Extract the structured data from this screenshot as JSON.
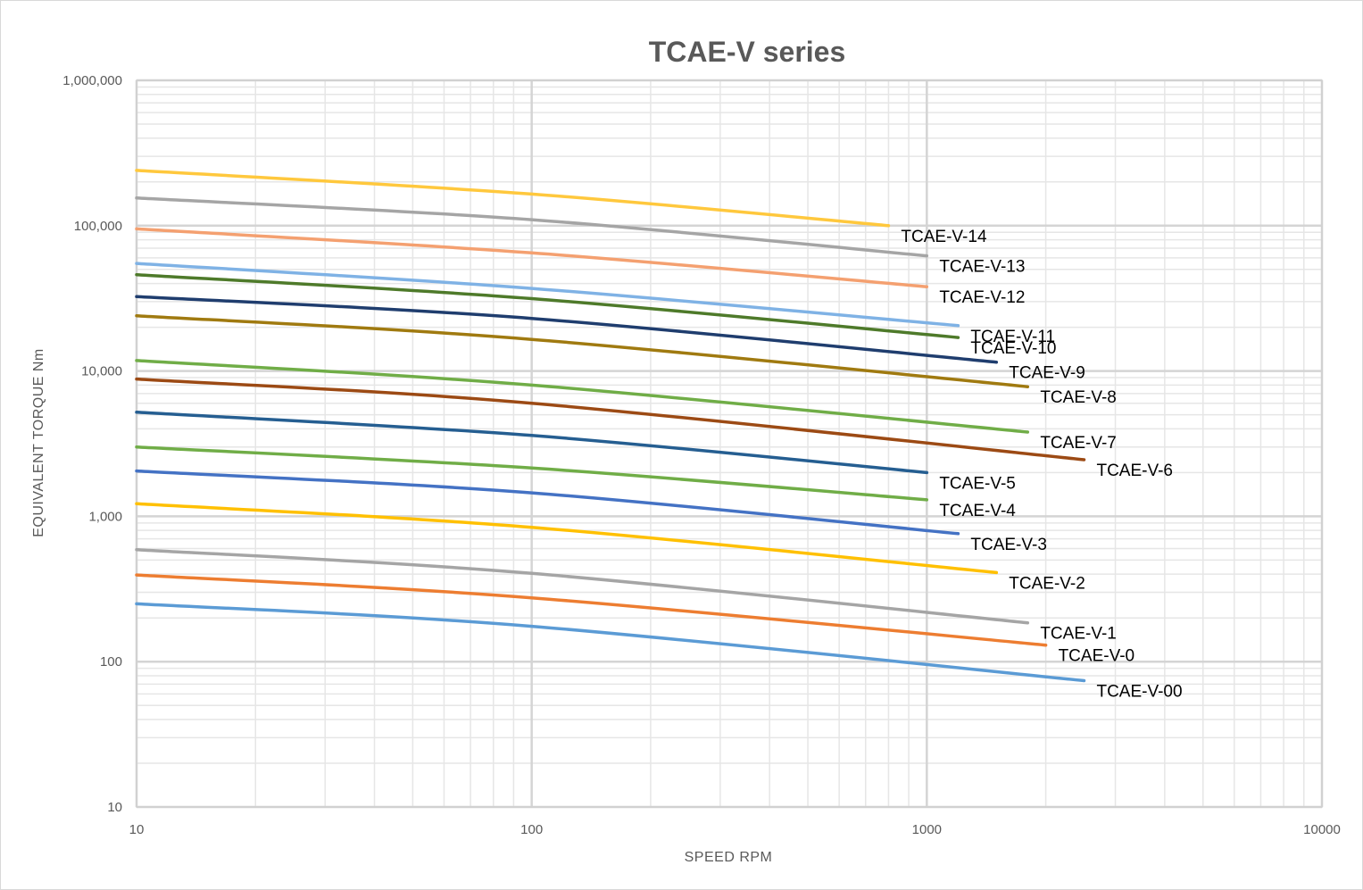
{
  "chart_data": {
    "type": "line",
    "title": "TCAE-V series",
    "xlabel": "SPEED  RPM",
    "ylabel": "EQUIVALENT TORQUE Nm",
    "x_scale": "log",
    "y_scale": "log",
    "xlim": [
      10,
      10000
    ],
    "ylim": [
      10,
      1000000
    ],
    "x_ticks": [
      "10",
      "100",
      "1000",
      "10000"
    ],
    "y_ticks": [
      "10",
      "100",
      "1,000",
      "10,000",
      "100,000",
      "1,000,000"
    ],
    "grid": true,
    "legend": "inline labels at line ends",
    "series": [
      {
        "name": "TCAE-V-14",
        "color": "#FFC83D",
        "x": [
          10,
          100,
          800
        ],
        "y": [
          240000,
          165000,
          100000
        ]
      },
      {
        "name": "TCAE-V-13",
        "color": "#A5A5A5",
        "x": [
          10,
          100,
          1000
        ],
        "y": [
          155000,
          110000,
          62000
        ]
      },
      {
        "name": "TCAE-V-12",
        "color": "#F4A070",
        "x": [
          10,
          100,
          1000
        ],
        "y": [
          95000,
          65000,
          38000
        ]
      },
      {
        "name": "TCAE-V-11",
        "color": "#7FB2E5",
        "x": [
          10,
          100,
          1200
        ],
        "y": [
          55000,
          37000,
          20500
        ]
      },
      {
        "name": "TCAE-V-10",
        "color": "#4E7A2A",
        "x": [
          10,
          100,
          1200
        ],
        "y": [
          46000,
          31500,
          17000
        ]
      },
      {
        "name": "TCAE-V-9",
        "color": "#1F3D6E",
        "x": [
          10,
          100,
          1500
        ],
        "y": [
          32500,
          23000,
          11500
        ]
      },
      {
        "name": "TCAE-V-8",
        "color": "#A07A10",
        "x": [
          10,
          100,
          1800
        ],
        "y": [
          24000,
          16500,
          7800
        ]
      },
      {
        "name": "TCAE-V-7",
        "color": "#70AD47",
        "x": [
          10,
          100,
          1800
        ],
        "y": [
          11800,
          8000,
          3800
        ]
      },
      {
        "name": "TCAE-V-6",
        "color": "#9C4A14",
        "x": [
          10,
          100,
          2500
        ],
        "y": [
          8800,
          6000,
          2450
        ]
      },
      {
        "name": "TCAE-V-5",
        "color": "#255E91",
        "x": [
          10,
          100,
          1000
        ],
        "y": [
          5200,
          3600,
          2000
        ]
      },
      {
        "name": "TCAE-V-4",
        "color": "#70AD47",
        "x": [
          10,
          100,
          1000
        ],
        "y": [
          3000,
          2150,
          1300
        ]
      },
      {
        "name": "TCAE-V-3",
        "color": "#4472C4",
        "x": [
          10,
          100,
          1200
        ],
        "y": [
          2050,
          1450,
          760
        ]
      },
      {
        "name": "TCAE-V-2",
        "color": "#FFC000",
        "x": [
          10,
          100,
          1500
        ],
        "y": [
          1220,
          840,
          410
        ]
      },
      {
        "name": "TCAE-V-1",
        "color": "#A5A5A5",
        "x": [
          10,
          100,
          1800
        ],
        "y": [
          590,
          405,
          185
        ]
      },
      {
        "name": "TCAE-V-0",
        "color": "#ED7D31",
        "x": [
          10,
          100,
          2000
        ],
        "y": [
          395,
          275,
          130
        ]
      },
      {
        "name": "TCAE-V-00",
        "color": "#5B9BD5",
        "x": [
          10,
          100,
          2500
        ],
        "y": [
          250,
          175,
          74
        ]
      }
    ]
  }
}
